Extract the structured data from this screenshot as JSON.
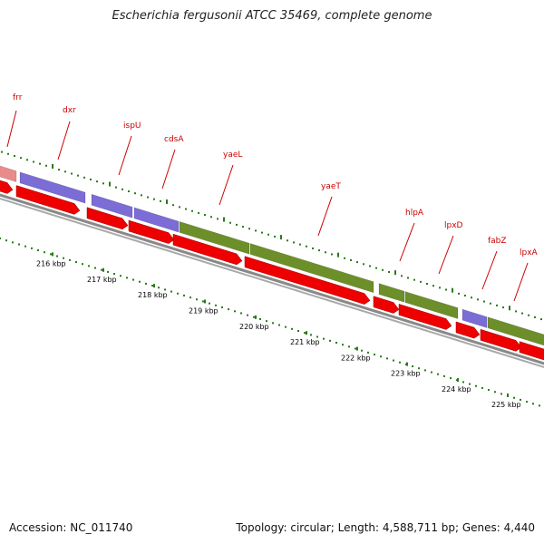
{
  "header": {
    "title": "Escherichia fergusonii ATCC 35469, complete genome"
  },
  "footer": {
    "accession": "Accession: NC_011740",
    "summary": "Topology: circular; Length: 4,588,711 bp; Genes: 4,440"
  },
  "colors": {
    "cds_forward": "#7b6cd6",
    "cds_forward_alt": "#6d8f2a",
    "cds_reverse": "#ee0000",
    "rna": "#e98b8b",
    "backbone": "#777777",
    "tick": "#2a7a1a",
    "label": "#cc0000"
  },
  "genes": [
    {
      "name": "frr",
      "strand": "forward",
      "type": "rna"
    },
    {
      "name": "dxr",
      "strand": "forward",
      "type": "cds"
    },
    {
      "name": "ispU",
      "strand": "forward",
      "type": "cds"
    },
    {
      "name": "cdsA",
      "strand": "forward",
      "type": "cds"
    },
    {
      "name": "yaeL",
      "strand": "forward",
      "type": "cds_alt"
    },
    {
      "name": "yaeT",
      "strand": "forward",
      "type": "cds_alt"
    },
    {
      "name": "hlpA",
      "strand": "forward",
      "type": "cds_alt"
    },
    {
      "name": "lpxD",
      "strand": "forward",
      "type": "cds_alt"
    },
    {
      "name": "fabZ",
      "strand": "forward",
      "type": "cds"
    },
    {
      "name": "lpxA",
      "strand": "forward",
      "type": "cds_alt"
    }
  ],
  "ticks": [
    "216 kbp",
    "217 kbp",
    "218 kbp",
    "219 kbp",
    "220 kbp",
    "221 kbp",
    "222 kbp",
    "223 kbp",
    "224 kbp",
    "225 kbp"
  ]
}
